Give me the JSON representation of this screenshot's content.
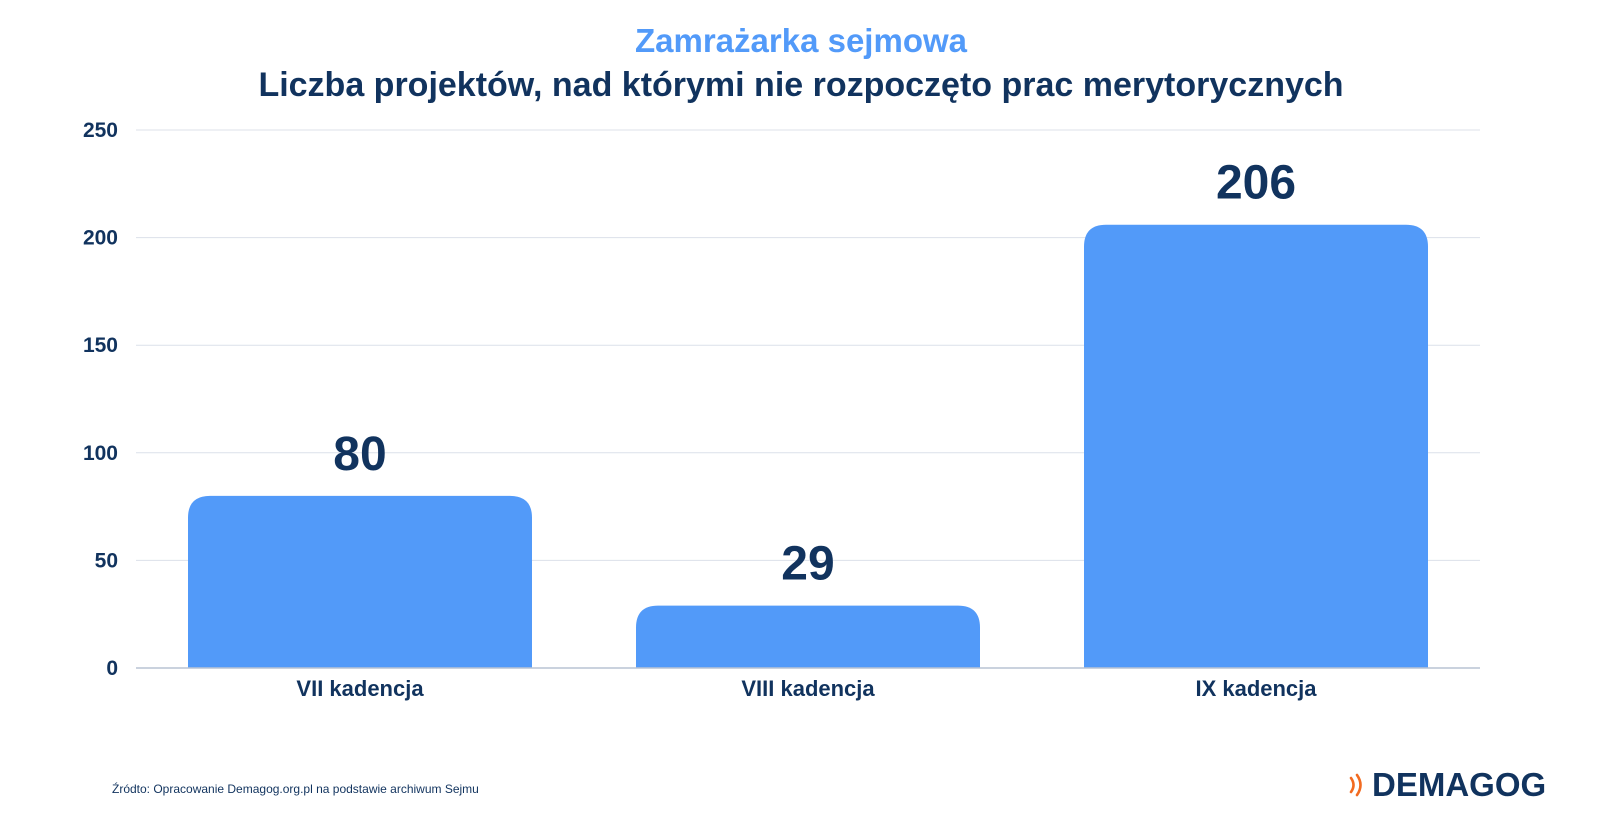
{
  "chart_data": {
    "type": "bar",
    "title": "Zamrażarka sejmowa",
    "subtitle": "Liczba projektów, nad którymi nie rozpoczęto prac merytorycznych",
    "categories": [
      "VII kadencja",
      "VIII kadencja",
      "IX kadencja"
    ],
    "values": [
      80,
      29,
      206
    ],
    "data_labels": [
      "80",
      "29",
      "206"
    ],
    "ylim": [
      0,
      250
    ],
    "yticks": [
      0,
      50,
      100,
      150,
      200,
      250
    ],
    "xlabel": "",
    "ylabel": "",
    "grid": true,
    "legend": "none",
    "bar_color": "#529af9",
    "text_color": "#11335e"
  },
  "footer": {
    "source": "Źródto: Opracowanie Demagog.org.pl na podstawie archiwum Sejmu",
    "logo_text": "DEMAGOG",
    "logo_accent_color": "#f26b21"
  }
}
